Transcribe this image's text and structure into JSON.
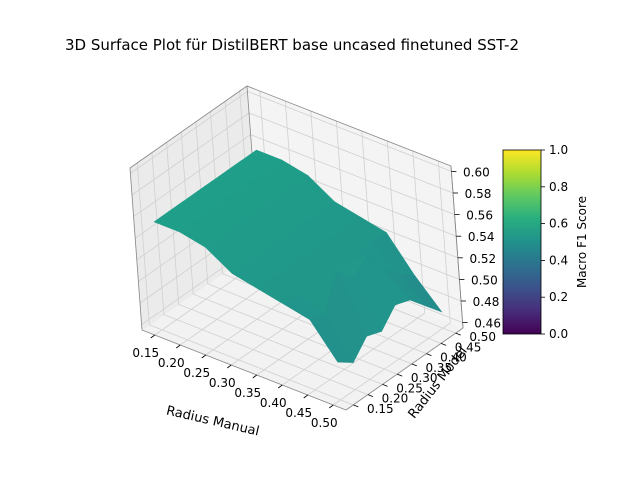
{
  "chart_data": {
    "type": "surface3d",
    "title": "3D Surface Plot für DistilBERT base uncased finetuned SST-2",
    "xlabel": "Radius Manual",
    "ylabel": "Radius Model",
    "zlabel": "",
    "xlim": [
      0.125,
      0.525
    ],
    "ylim": [
      0.125,
      0.525
    ],
    "zlim": [
      0.455,
      0.605
    ],
    "x_ticks": [
      0.15,
      0.2,
      0.25,
      0.3,
      0.35,
      0.4,
      0.45,
      0.5
    ],
    "x_tick_labels": [
      "0.15",
      "0.20",
      "0.25",
      "0.30",
      "0.35",
      "0.40",
      "0.45",
      "0.50"
    ],
    "y_ticks": [
      0.15,
      0.2,
      0.25,
      0.3,
      0.35,
      0.4,
      0.45,
      0.5
    ],
    "y_tick_labels": [
      "0.15",
      "0.20",
      "0.25",
      "0.30",
      "0.35",
      "0.40",
      "0.45",
      "0.50"
    ],
    "z_ticks": [
      0.46,
      0.48,
      0.5,
      0.52,
      0.54,
      0.56,
      0.58,
      0.6
    ],
    "z_tick_labels": [
      "0.46",
      "0.48",
      "0.50",
      "0.52",
      "0.54",
      "0.56",
      "0.58",
      "0.60"
    ],
    "x": [
      0.15,
      0.2,
      0.25,
      0.3,
      0.35,
      0.4,
      0.45,
      0.5
    ],
    "y": [
      0.15,
      0.2,
      0.25,
      0.3,
      0.35,
      0.4,
      0.45,
      0.5
    ],
    "z": [
      [
        0.555,
        0.555,
        0.555,
        0.555,
        0.555,
        0.555,
        0.555,
        0.555
      ],
      [
        0.555,
        0.555,
        0.555,
        0.555,
        0.555,
        0.555,
        0.555,
        0.555
      ],
      [
        0.55,
        0.55,
        0.55,
        0.55,
        0.55,
        0.55,
        0.55,
        0.55
      ],
      [
        0.535,
        0.535,
        0.535,
        0.535,
        0.535,
        0.535,
        0.535,
        0.535
      ],
      [
        0.53,
        0.53,
        0.53,
        0.53,
        0.53,
        0.53,
        0.53,
        0.53
      ],
      [
        0.525,
        0.525,
        0.525,
        0.525,
        0.525,
        0.525,
        0.525,
        0.525
      ],
      [
        0.52,
        0.515,
        0.545,
        0.53,
        0.54,
        0.52,
        0.505,
        0.495
      ],
      [
        0.49,
        0.48,
        0.495,
        0.49,
        0.505,
        0.5,
        0.485,
        0.47
      ]
    ],
    "colorbar": {
      "label": "Macro F1 Score",
      "range": [
        0.0,
        1.0
      ],
      "ticks": [
        0.0,
        0.2,
        0.4,
        0.6,
        0.8,
        1.0
      ],
      "tick_labels": [
        "0.0",
        "0.2",
        "0.4",
        "0.6",
        "0.8",
        "1.0"
      ],
      "colormap": "viridis"
    },
    "grid": true
  }
}
